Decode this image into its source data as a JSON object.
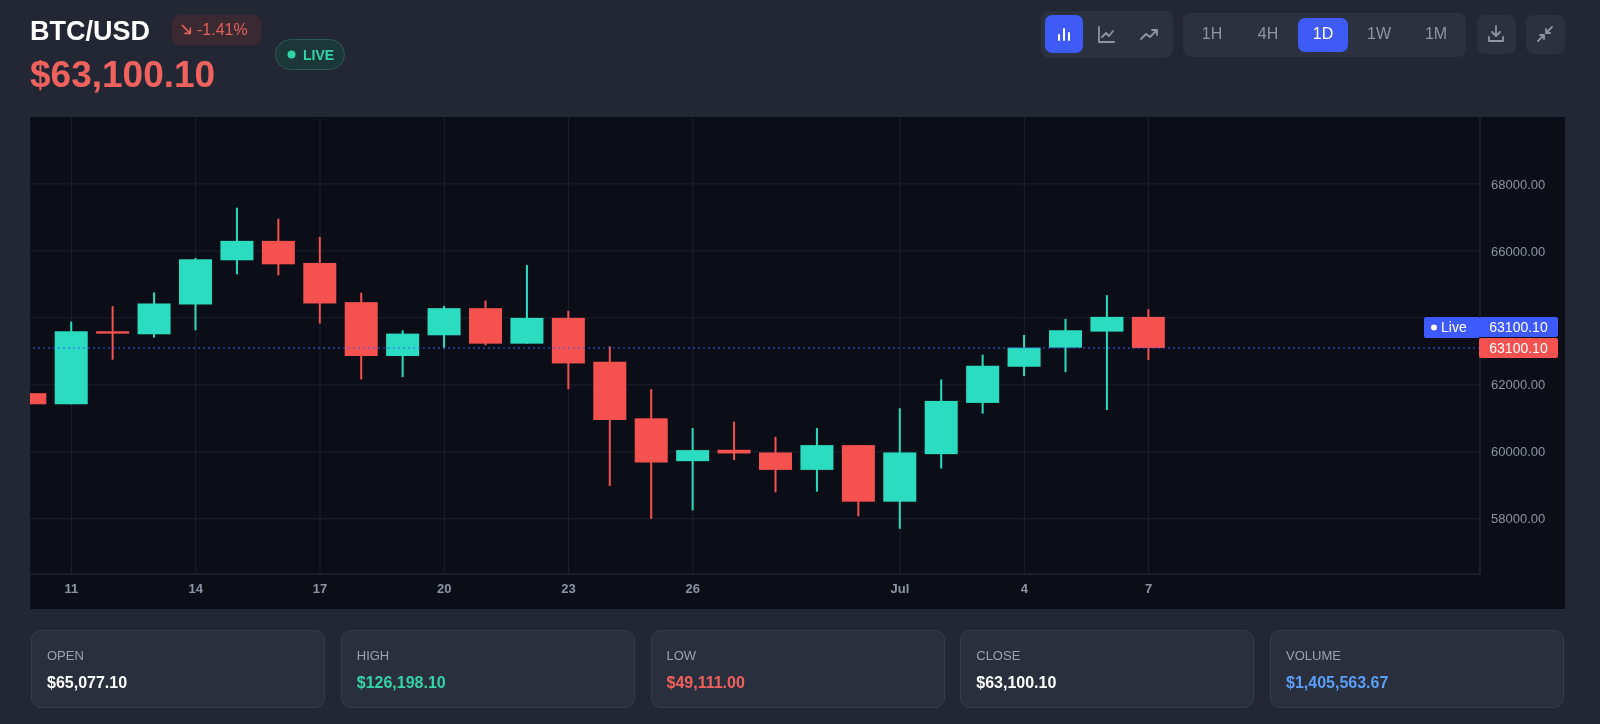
{
  "chart_data": {
    "type": "candlestick",
    "title": "BTC/USD",
    "subtitle": "$63,100.10",
    "x": [
      "--06-10",
      "--06-11",
      "--06-12",
      "--06-13",
      "--06-14",
      "--06-15",
      "--06-16",
      "--06-17",
      "--06-18",
      "--06-19",
      "--06-20",
      "--06-21",
      "--06-22",
      "--06-23",
      "--06-24",
      "--06-25",
      "--06-26",
      "--06-27",
      "--06-28",
      "--06-29",
      "--06-30",
      "--07-01",
      "--07-02",
      "--07-03",
      "--07-04",
      "--07-05",
      "--07-06",
      "--07-07"
    ],
    "ohlc": [
      [
        61750,
        61750,
        61420,
        61420
      ],
      [
        61420,
        63890,
        61420,
        63600
      ],
      [
        63600,
        64350,
        62750,
        63530
      ],
      [
        63510,
        64760,
        63410,
        64430
      ],
      [
        64400,
        65790,
        63630,
        65750
      ],
      [
        65720,
        67290,
        65300,
        66300
      ],
      [
        66300,
        66960,
        65270,
        65600
      ],
      [
        65640,
        66420,
        63830,
        64430
      ],
      [
        64470,
        64750,
        62160,
        62860
      ],
      [
        62860,
        63630,
        62230,
        63530
      ],
      [
        63480,
        64360,
        63090,
        64290
      ],
      [
        64290,
        64520,
        63180,
        63230
      ],
      [
        63230,
        65580,
        63230,
        64000
      ],
      [
        64000,
        64210,
        61870,
        62640
      ],
      [
        62690,
        63150,
        58980,
        60950
      ],
      [
        61000,
        61870,
        58000,
        59680
      ],
      [
        59720,
        60710,
        58250,
        60050
      ],
      [
        60060,
        60900,
        59750,
        59950
      ],
      [
        59980,
        60450,
        58790,
        59460
      ],
      [
        59460,
        60710,
        58810,
        60200
      ],
      [
        60200,
        60200,
        58070,
        58510
      ],
      [
        58510,
        61300,
        57700,
        59980
      ],
      [
        59930,
        62160,
        59500,
        61520
      ],
      [
        61460,
        62900,
        61140,
        62570
      ],
      [
        62540,
        63490,
        62260,
        63110
      ],
      [
        63110,
        63970,
        62380,
        63630
      ],
      [
        63590,
        64680,
        61250,
        64030
      ],
      [
        64030,
        64260,
        62740,
        63100.1
      ]
    ],
    "colors": [
      "#f5524f",
      "#2bdcc0",
      "#f5524f",
      "#2bdcc0",
      "#2bdcc0",
      "#2bdcc0",
      "#f5524f",
      "#f5524f",
      "#f5524f",
      "#2bdcc0",
      "#2bdcc0",
      "#f5524f",
      "#2bdcc0",
      "#f5524f",
      "#f5524f",
      "#f5524f",
      "#2bdcc0",
      "#f5524f",
      "#f5524f",
      "#2bdcc0",
      "#f5524f",
      "#2bdcc0",
      "#2bdcc0",
      "#2bdcc0",
      "#2bdcc0",
      "#2bdcc0",
      "#2bdcc0",
      "#f5524f"
    ],
    "xlim": [
      "--06-10",
      "--07-15"
    ],
    "xticks": [
      {
        "value": "--06-11",
        "label": "11"
      },
      {
        "value": "--06-14",
        "label": "14"
      },
      {
        "value": "--06-17",
        "label": "17"
      },
      {
        "value": "--06-20",
        "label": "20"
      },
      {
        "value": "--06-23",
        "label": "23"
      },
      {
        "value": "--06-26",
        "label": "26"
      },
      {
        "value": "--07-01",
        "label": "Jul"
      },
      {
        "value": "--07-04",
        "label": "4"
      },
      {
        "value": "--07-07",
        "label": "7"
      }
    ],
    "ylim": [
      56350,
      70000
    ],
    "yticks": [
      {
        "value": 58000,
        "label": "58000.00"
      },
      {
        "value": 60000,
        "label": "60000.00"
      },
      {
        "value": 62000,
        "label": "62000.00"
      },
      {
        "value": 64000,
        "label": null
      },
      {
        "value": 66000,
        "label": "66000.00"
      },
      {
        "value": 68000,
        "label": "68000.00"
      }
    ],
    "grid": true,
    "ref_lines": [
      {
        "axis": "y",
        "value": 63100.1,
        "label": "Live",
        "color": "#3d5afe",
        "line_style": "dotted"
      }
    ],
    "annotations": [
      "-1.41%",
      "LIVE",
      "1H",
      "4H",
      "1D",
      "1W",
      "1M",
      "OPEN",
      "$65,077.10",
      "HIGH",
      "$126,198.10",
      "LOW",
      "$49,111.00",
      "CLOSE",
      "$63,100.10",
      "VOLUME",
      "$1,405,563.67",
      "63100.10",
      "63100.10"
    ]
  }
}
